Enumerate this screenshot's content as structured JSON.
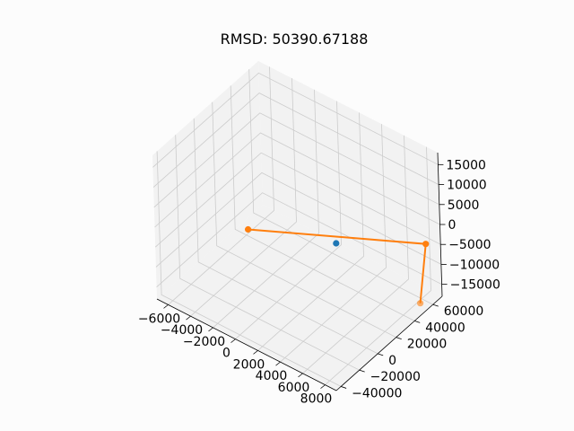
{
  "chart_data": {
    "type": "scatter",
    "title": "RMSD: 50390.67188",
    "axes": {
      "x": {
        "ticks": [
          -6000,
          -4000,
          -2000,
          0,
          2000,
          4000,
          6000,
          8000
        ],
        "tick_labels": [
          "−6000",
          "−4000",
          "−2000",
          "0",
          "2000",
          "4000",
          "6000",
          "8000"
        ],
        "lim": [
          -7000,
          9000
        ]
      },
      "y": {
        "ticks": [
          -40000,
          -20000,
          0,
          20000,
          40000,
          60000
        ],
        "tick_labels": [
          "−40000",
          "−20000",
          "0",
          "20000",
          "40000",
          "60000"
        ],
        "lim": [
          -45000,
          70000
        ]
      },
      "z": {
        "ticks": [
          -15000,
          -10000,
          -5000,
          0,
          5000,
          10000,
          15000
        ],
        "tick_labels": [
          "−15000",
          "−10000",
          "−5000",
          "0",
          "5000",
          "10000",
          "15000"
        ],
        "lim": [
          -18000,
          18000
        ]
      }
    },
    "grid": true,
    "series": [
      {
        "role": "reference",
        "color": "#1f77b4",
        "points": [
          [
            400,
            60000,
            -15000
          ]
        ]
      },
      {
        "role": "predicted",
        "color": "#ff7f0e",
        "points": [
          [
            -6000,
            42000,
            -17000
          ],
          [
            8000,
            66000,
            -5500
          ],
          [
            8200,
            56000,
            -18000
          ]
        ]
      }
    ]
  }
}
